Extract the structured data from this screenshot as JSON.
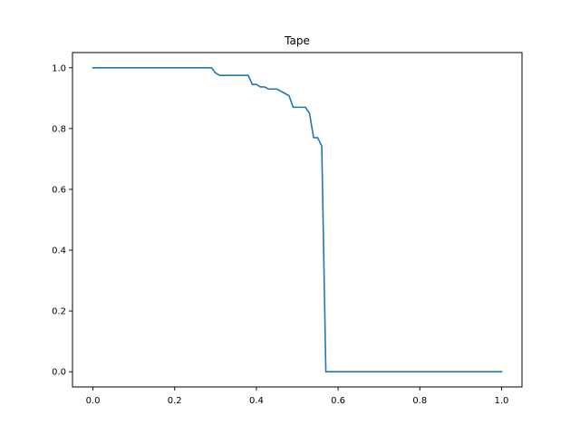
{
  "chart_data": {
    "type": "line",
    "title": "Tape",
    "xlabel": "",
    "ylabel": "",
    "xlim": [
      -0.05,
      1.05
    ],
    "ylim": [
      -0.05,
      1.05
    ],
    "xticks": [
      0.0,
      0.2,
      0.4,
      0.6,
      0.8,
      1.0
    ],
    "xtick_labels": [
      "0.0",
      "0.2",
      "0.4",
      "0.6",
      "0.8",
      "1.0"
    ],
    "yticks": [
      0.0,
      0.2,
      0.4,
      0.6,
      0.8,
      1.0
    ],
    "ytick_labels": [
      "0.0",
      "0.2",
      "0.4",
      "0.6",
      "0.8",
      "1.0"
    ],
    "grid": false,
    "series": [
      {
        "color": "#1f77b4",
        "x": [
          0.0,
          0.29,
          0.3,
          0.31,
          0.38,
          0.39,
          0.4,
          0.41,
          0.42,
          0.43,
          0.45,
          0.48,
          0.49,
          0.52,
          0.53,
          0.54,
          0.55,
          0.56,
          0.57,
          1.0
        ],
        "y": [
          1.0,
          1.0,
          0.983,
          0.975,
          0.975,
          0.945,
          0.945,
          0.937,
          0.937,
          0.93,
          0.93,
          0.908,
          0.87,
          0.87,
          0.85,
          0.77,
          0.77,
          0.742,
          0.0,
          0.0
        ]
      }
    ]
  }
}
